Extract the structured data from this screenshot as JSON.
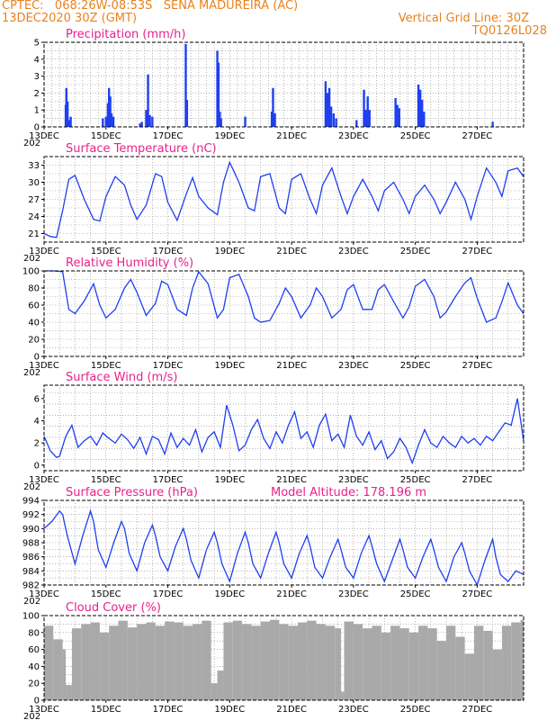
{
  "header": {
    "line1_left": "CPTEC:   068:26W-08:53S   SENA MADUREIRA (AC)",
    "line2_left": "13DEC2020 30Z (GMT)",
    "line2_right": "Vertical Grid Line: 30Z",
    "line3_right": "TQ0126L028"
  },
  "colors": {
    "header": "#e8821e",
    "title": "#e8218c",
    "series": "#1f3ff0",
    "cloud": "#a9a9a9"
  },
  "x_labels": [
    "13DEC",
    "15DEC",
    "17DEC",
    "19DEC",
    "21DEC",
    "23DEC",
    "25DEC",
    "27DEC"
  ],
  "year_fragment": "202",
  "chart_data": [
    {
      "type": "bar",
      "title": "Precipitation (mm/h)",
      "ylim": [
        0,
        5
      ],
      "yticks": [
        0,
        1,
        2,
        3,
        4,
        5
      ],
      "xlim": [
        0,
        15.5
      ],
      "grid": true,
      "bars": [
        [
          0.7,
          1.3
        ],
        [
          0.72,
          2.3
        ],
        [
          0.76,
          1.5
        ],
        [
          0.8,
          0.4
        ],
        [
          0.86,
          0.6
        ],
        [
          1.9,
          0.5
        ],
        [
          2.0,
          0.6
        ],
        [
          2.06,
          1.4
        ],
        [
          2.1,
          2.3
        ],
        [
          2.14,
          1.8
        ],
        [
          2.18,
          0.8
        ],
        [
          2.24,
          0.6
        ],
        [
          3.1,
          0.2
        ],
        [
          3.16,
          0.3
        ],
        [
          3.3,
          1.0
        ],
        [
          3.36,
          3.1
        ],
        [
          3.42,
          0.7
        ],
        [
          3.5,
          0.6
        ],
        [
          4.58,
          4.9
        ],
        [
          4.62,
          1.6
        ],
        [
          5.6,
          4.5
        ],
        [
          5.64,
          3.8
        ],
        [
          5.68,
          0.9
        ],
        [
          5.72,
          0.5
        ],
        [
          6.5,
          0.6
        ],
        [
          7.36,
          0.9
        ],
        [
          7.4,
          2.3
        ],
        [
          7.46,
          0.8
        ],
        [
          9.1,
          2.7
        ],
        [
          9.16,
          2.0
        ],
        [
          9.22,
          2.3
        ],
        [
          9.28,
          1.2
        ],
        [
          9.36,
          0.8
        ],
        [
          9.44,
          0.5
        ],
        [
          10.1,
          0.4
        ],
        [
          10.34,
          2.2
        ],
        [
          10.4,
          1.0
        ],
        [
          10.46,
          1.8
        ],
        [
          10.52,
          1.0
        ],
        [
          11.36,
          1.7
        ],
        [
          11.42,
          1.3
        ],
        [
          11.48,
          1.1
        ],
        [
          12.1,
          2.5
        ],
        [
          12.16,
          2.2
        ],
        [
          12.22,
          1.6
        ],
        [
          12.28,
          0.9
        ],
        [
          14.5,
          0.3
        ]
      ]
    },
    {
      "type": "line",
      "title": "Surface Temperature (nC)",
      "ylim": [
        19.5,
        34.5
      ],
      "yticks": [
        21,
        24,
        27,
        30,
        33
      ],
      "xlim": [
        0,
        15.5
      ],
      "grid": true,
      "x": [
        0,
        0.2,
        0.4,
        0.6,
        0.8,
        1.0,
        1.3,
        1.6,
        1.8,
        2.0,
        2.3,
        2.6,
        2.8,
        3.0,
        3.3,
        3.6,
        3.8,
        4.0,
        4.3,
        4.6,
        4.8,
        5.0,
        5.3,
        5.6,
        5.8,
        6.0,
        6.3,
        6.6,
        6.8,
        7.0,
        7.3,
        7.6,
        7.8,
        8.0,
        8.3,
        8.6,
        8.8,
        9.0,
        9.3,
        9.6,
        9.8,
        10.0,
        10.3,
        10.6,
        10.8,
        11.0,
        11.3,
        11.6,
        11.8,
        12.0,
        12.3,
        12.6,
        12.8,
        13.0,
        13.3,
        13.6,
        13.8,
        14.0,
        14.3,
        14.6,
        14.8,
        15.0,
        15.3,
        15.5
      ],
      "y": [
        21,
        20.5,
        20.3,
        25,
        30.5,
        31.2,
        27,
        23.5,
        23.2,
        27.5,
        31,
        29.5,
        26,
        23.5,
        26,
        31.5,
        31,
        26.5,
        23.3,
        28,
        30.8,
        27.5,
        25.5,
        24.3,
        30,
        33.5,
        30,
        25.5,
        25,
        31,
        31.5,
        25.5,
        24.5,
        30.5,
        31.5,
        27,
        24.5,
        29.5,
        32.5,
        27.5,
        24.5,
        27.5,
        30.5,
        27.5,
        25,
        28.5,
        30,
        27,
        24.5,
        27.5,
        29.5,
        27,
        24.5,
        26.5,
        30,
        27,
        23.5,
        27.5,
        32.5,
        30,
        27.5,
        32,
        32.5,
        31
      ]
    },
    {
      "type": "line",
      "title": "Relative Humidity (%)",
      "ylim": [
        0,
        100
      ],
      "yticks": [
        0,
        20,
        40,
        60,
        80,
        100
      ],
      "xlim": [
        0,
        15.5
      ],
      "grid": true,
      "x": [
        0,
        0.3,
        0.6,
        0.8,
        1.0,
        1.3,
        1.6,
        1.8,
        2.0,
        2.3,
        2.6,
        2.8,
        3.0,
        3.3,
        3.6,
        3.8,
        4.0,
        4.3,
        4.6,
        4.8,
        5.0,
        5.3,
        5.6,
        5.8,
        6.0,
        6.3,
        6.6,
        6.8,
        7.0,
        7.3,
        7.6,
        7.8,
        8.0,
        8.3,
        8.6,
        8.8,
        9.0,
        9.3,
        9.6,
        9.8,
        10.0,
        10.3,
        10.6,
        10.8,
        11.0,
        11.3,
        11.6,
        11.8,
        12.0,
        12.3,
        12.6,
        12.8,
        13.0,
        13.3,
        13.6,
        13.8,
        14.0,
        14.3,
        14.6,
        14.8,
        15.0,
        15.3,
        15.5
      ],
      "y": [
        100,
        100,
        99,
        55,
        50,
        65,
        85,
        60,
        45,
        55,
        80,
        90,
        75,
        48,
        62,
        88,
        84,
        55,
        48,
        80,
        99,
        85,
        45,
        55,
        92,
        96,
        70,
        45,
        40,
        42,
        62,
        80,
        70,
        45,
        60,
        80,
        70,
        45,
        55,
        78,
        84,
        55,
        55,
        78,
        84,
        64,
        45,
        58,
        82,
        90,
        70,
        45,
        52,
        70,
        86,
        92,
        68,
        40,
        45,
        64,
        86,
        60,
        50
      ]
    },
    {
      "type": "line",
      "title": "Surface Wind (m/s)",
      "ylim": [
        -0.5,
        7.2
      ],
      "yticks": [
        0,
        2,
        4,
        6
      ],
      "xlim": [
        0,
        15.5
      ],
      "grid": true,
      "x": [
        0,
        0.2,
        0.4,
        0.5,
        0.7,
        0.9,
        1.1,
        1.3,
        1.5,
        1.7,
        1.9,
        2.1,
        2.3,
        2.5,
        2.7,
        2.9,
        3.1,
        3.3,
        3.5,
        3.7,
        3.9,
        4.1,
        4.3,
        4.5,
        4.7,
        4.9,
        5.1,
        5.3,
        5.5,
        5.7,
        5.9,
        6.1,
        6.3,
        6.5,
        6.7,
        6.9,
        7.1,
        7.3,
        7.5,
        7.7,
        7.9,
        8.1,
        8.3,
        8.5,
        8.7,
        8.9,
        9.1,
        9.3,
        9.5,
        9.7,
        9.9,
        10.1,
        10.3,
        10.5,
        10.7,
        10.9,
        11.1,
        11.3,
        11.5,
        11.7,
        11.9,
        12.1,
        12.3,
        12.5,
        12.7,
        12.9,
        13.1,
        13.3,
        13.5,
        13.7,
        13.9,
        14.1,
        14.3,
        14.5,
        14.7,
        14.9,
        15.1,
        15.3,
        15.5
      ],
      "y": [
        2.6,
        1.3,
        0.7,
        0.8,
        2.6,
        3.6,
        1.6,
        2.2,
        2.6,
        1.8,
        2.9,
        2.4,
        2.0,
        2.8,
        2.3,
        1.5,
        2.5,
        1.0,
        2.6,
        2.3,
        1.0,
        2.9,
        1.6,
        2.4,
        1.8,
        3.2,
        1.2,
        2.5,
        3.0,
        1.6,
        5.4,
        3.6,
        1.3,
        1.8,
        3.2,
        4.1,
        2.4,
        1.5,
        3.0,
        2.0,
        3.6,
        4.8,
        2.4,
        3.0,
        1.6,
        3.6,
        4.6,
        2.2,
        2.8,
        1.6,
        4.5,
        2.6,
        1.8,
        3.0,
        1.4,
        2.2,
        0.6,
        1.2,
        2.4,
        1.6,
        0.2,
        1.8,
        3.2,
        2.0,
        1.6,
        2.6,
        2.0,
        1.6,
        2.6,
        2.0,
        2.4,
        1.8,
        2.6,
        2.2,
        3.0,
        3.8,
        3.6,
        6.0,
        2.2
      ]
    },
    {
      "type": "line",
      "title": "Surface Pressure (hPa)",
      "annotation": "Model Altitude: 178.196  m",
      "ylim": [
        982,
        994
      ],
      "yticks": [
        982,
        984,
        986,
        988,
        990,
        992,
        994
      ],
      "xlim": [
        0,
        15.5
      ],
      "grid": true,
      "x": [
        0,
        0.25,
        0.5,
        0.6,
        0.75,
        1.0,
        1.25,
        1.5,
        1.6,
        1.75,
        2.0,
        2.25,
        2.5,
        2.6,
        2.75,
        3.0,
        3.25,
        3.5,
        3.6,
        3.75,
        4.0,
        4.25,
        4.5,
        4.6,
        4.75,
        5.0,
        5.25,
        5.5,
        5.6,
        5.75,
        6.0,
        6.25,
        6.5,
        6.6,
        6.75,
        7.0,
        7.25,
        7.5,
        7.6,
        7.75,
        8.0,
        8.25,
        8.5,
        8.6,
        8.75,
        9.0,
        9.25,
        9.5,
        9.6,
        9.75,
        10.0,
        10.25,
        10.5,
        10.6,
        10.75,
        11.0,
        11.25,
        11.5,
        11.6,
        11.75,
        12.0,
        12.25,
        12.5,
        12.6,
        12.75,
        13.0,
        13.25,
        13.5,
        13.6,
        13.75,
        14.0,
        14.25,
        14.5,
        14.6,
        14.75,
        15.0,
        15.25,
        15.5
      ],
      "y": [
        990,
        991,
        992.5,
        992,
        989,
        985,
        989,
        992.5,
        991,
        987,
        984.5,
        988,
        991,
        990,
        986.5,
        984,
        988,
        990.5,
        989,
        986,
        984,
        987.5,
        990,
        988.5,
        985.5,
        983,
        987,
        989.5,
        988,
        985,
        982.5,
        986.5,
        989.5,
        988,
        985,
        983,
        986.5,
        989.5,
        988,
        985,
        983,
        986.5,
        989,
        987.5,
        984.5,
        983,
        986,
        988.5,
        987,
        984.5,
        983,
        986.5,
        989,
        987.5,
        985,
        982.5,
        985.5,
        988.5,
        987,
        984.5,
        983,
        986,
        988.5,
        987,
        984.5,
        982.5,
        986,
        988,
        986.5,
        984,
        982,
        985.5,
        988.5,
        986,
        983.5,
        982.5,
        984,
        983.5
      ]
    },
    {
      "type": "bar",
      "title": "Cloud Cover (%)",
      "ylim": [
        0,
        100
      ],
      "yticks": [
        0,
        20,
        40,
        60,
        80,
        100
      ],
      "xlim": [
        0,
        15.5
      ],
      "grid": true,
      "x": [
        0,
        0.3,
        0.6,
        0.7,
        0.9,
        1.2,
        1.5,
        1.8,
        2.1,
        2.4,
        2.7,
        3.0,
        3.3,
        3.6,
        3.9,
        4.2,
        4.5,
        4.8,
        5.1,
        5.4,
        5.6,
        5.8,
        6.1,
        6.4,
        6.7,
        7.0,
        7.3,
        7.6,
        7.9,
        8.2,
        8.5,
        8.8,
        9.1,
        9.4,
        9.6,
        9.7,
        10.0,
        10.3,
        10.6,
        10.9,
        11.2,
        11.5,
        11.8,
        12.1,
        12.4,
        12.7,
        13.0,
        13.3,
        13.6,
        13.9,
        14.2,
        14.5,
        14.8,
        15.1,
        15.4
      ],
      "y": [
        88,
        72,
        60,
        18,
        85,
        90,
        92,
        80,
        88,
        94,
        86,
        90,
        92,
        88,
        93,
        92,
        88,
        90,
        94,
        20,
        35,
        92,
        94,
        90,
        88,
        93,
        95,
        90,
        88,
        92,
        94,
        90,
        88,
        85,
        10,
        93,
        90,
        85,
        88,
        80,
        88,
        85,
        80,
        88,
        85,
        70,
        88,
        75,
        55,
        88,
        82,
        60,
        88,
        92,
        95
      ]
    }
  ]
}
